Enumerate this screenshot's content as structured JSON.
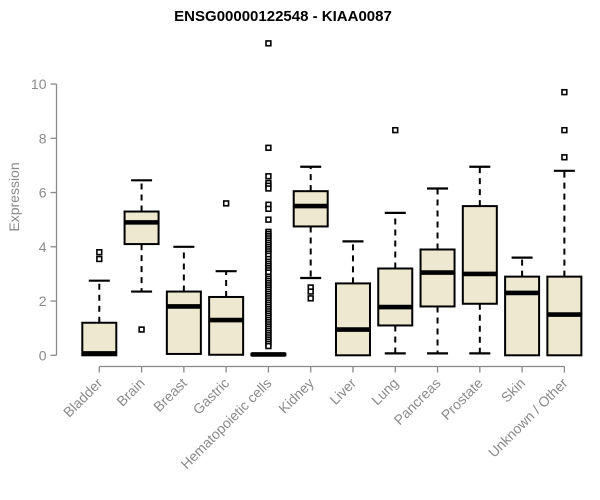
{
  "title": "ENSG00000122548 - KIAA0087",
  "chart_data": {
    "type": "boxplot",
    "title": "ENSG00000122548 - KIAA0087",
    "ylabel": "Expression",
    "xlabel": "",
    "ylim": [
      0,
      11.6
    ],
    "yticks": [
      0,
      2,
      4,
      6,
      8,
      10
    ],
    "ytick_labels": [
      "0",
      "2",
      "4",
      "6",
      "8",
      "10"
    ],
    "grid": false,
    "legend": "none",
    "colors": {
      "box_fill": "#ede8cf",
      "box_stroke": "#000000",
      "median": "#000000",
      "whisker": "#000000",
      "outlier_stroke": "#000000",
      "outlier_fill": "#ffffff",
      "axis": "#8a8a8a",
      "tick_text": "#8a8a8a",
      "title_text": "#000000",
      "background": "#ffffff"
    },
    "categories": [
      "Bladder",
      "Brain",
      "Breast",
      "Gastric",
      "Hematopoietic cells",
      "Kidney",
      "Liver",
      "Lung",
      "Pancreas",
      "Prostate",
      "Skin",
      "Unknown / Other"
    ],
    "series": [
      {
        "name": "Bladder",
        "whisker_low": 0,
        "q1": 0,
        "median": 0.07,
        "q3": 1.2,
        "whisker_high": 2.75,
        "outliers": [
          3.55,
          3.8
        ]
      },
      {
        "name": "Brain",
        "whisker_low": 2.35,
        "q1": 4.1,
        "median": 4.9,
        "q3": 5.3,
        "whisker_high": 6.45,
        "outliers": [
          0.95
        ]
      },
      {
        "name": "Breast",
        "whisker_low": 0.05,
        "q1": 0.05,
        "median": 1.8,
        "q3": 2.35,
        "whisker_high": 4.0,
        "outliers": []
      },
      {
        "name": "Gastric",
        "whisker_low": 0.02,
        "q1": 0.02,
        "median": 1.3,
        "q3": 2.15,
        "whisker_high": 3.1,
        "outliers": [
          5.6
        ]
      },
      {
        "name": "Hematopoietic cells",
        "whisker_low": 0,
        "q1": 0,
        "median": 0.03,
        "q3": 0.06,
        "whisker_high": 0.06,
        "outliers": [
          11.5,
          7.65,
          6.6,
          6.35,
          6.25,
          6.15,
          5.55,
          5.4,
          5.0,
          4.55,
          4.47,
          4.39,
          4.31,
          4.23,
          4.15,
          4.07,
          3.99,
          3.91,
          3.83,
          3.75,
          3.67,
          3.55,
          3.45,
          3.37,
          3.29,
          3.21,
          3.13,
          3.05,
          2.9,
          2.82,
          2.74,
          2.66,
          2.58,
          2.5,
          2.42,
          2.34,
          2.26,
          2.18,
          2.1,
          2.02,
          1.94,
          1.86,
          1.78,
          1.7,
          1.62,
          1.54,
          1.46,
          1.38,
          1.3,
          1.22,
          1.14,
          1.06,
          0.98,
          0.9,
          0.82,
          0.74,
          0.66,
          0.58,
          0.5,
          0.42,
          0.34
        ]
      },
      {
        "name": "Kidney",
        "whisker_low": 2.85,
        "q1": 4.75,
        "median": 5.5,
        "q3": 6.05,
        "whisker_high": 6.95,
        "outliers": [
          2.5,
          2.35,
          2.1
        ]
      },
      {
        "name": "Liver",
        "whisker_low": 0,
        "q1": 0,
        "median": 0.95,
        "q3": 2.65,
        "whisker_high": 4.2,
        "outliers": []
      },
      {
        "name": "Lung",
        "whisker_low": 0.07,
        "q1": 1.1,
        "median": 1.78,
        "q3": 3.2,
        "whisker_high": 5.25,
        "outliers": [
          8.3
        ]
      },
      {
        "name": "Pancreas",
        "whisker_low": 0.07,
        "q1": 1.8,
        "median": 3.05,
        "q3": 3.9,
        "whisker_high": 6.15,
        "outliers": []
      },
      {
        "name": "Prostate",
        "whisker_low": 0.07,
        "q1": 1.9,
        "median": 3.0,
        "q3": 5.5,
        "whisker_high": 6.95,
        "outliers": []
      },
      {
        "name": "Skin",
        "whisker_low": 0,
        "q1": 0,
        "median": 2.3,
        "q3": 2.9,
        "whisker_high": 3.6,
        "outliers": []
      },
      {
        "name": "Unknown / Other",
        "whisker_low": 0,
        "q1": 0,
        "median": 1.5,
        "q3": 2.9,
        "whisker_high": 6.8,
        "outliers": [
          7.3,
          8.3,
          9.7
        ]
      }
    ]
  }
}
